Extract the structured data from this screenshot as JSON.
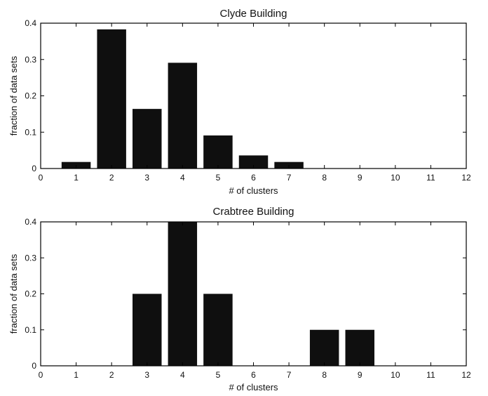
{
  "chart_data": [
    {
      "type": "bar",
      "title": "Clyde Building",
      "xlabel": "# of clusters",
      "ylabel": "fraction of data sets",
      "xlim": [
        0,
        12
      ],
      "ylim": [
        0,
        0.4
      ],
      "xticks": [
        0,
        1,
        2,
        3,
        4,
        5,
        6,
        7,
        8,
        9,
        10,
        11,
        12
      ],
      "yticks": [
        0,
        0.1,
        0.2,
        0.3,
        0.4
      ],
      "x": [
        1,
        2,
        3,
        4,
        5,
        6,
        7
      ],
      "values": [
        0.018,
        0.383,
        0.164,
        0.291,
        0.091,
        0.036,
        0.018
      ],
      "color": "#0f0f0f",
      "grid": false
    },
    {
      "type": "bar",
      "title": "Crabtree Building",
      "xlabel": "# of clusters",
      "ylabel": "fraction of data sets",
      "xlim": [
        0,
        12
      ],
      "ylim": [
        0,
        0.4
      ],
      "xticks": [
        0,
        1,
        2,
        3,
        4,
        5,
        6,
        7,
        8,
        9,
        10,
        11,
        12
      ],
      "yticks": [
        0,
        0.1,
        0.2,
        0.3,
        0.4
      ],
      "x": [
        3,
        4,
        5,
        8,
        9
      ],
      "values": [
        0.2,
        0.4,
        0.2,
        0.1,
        0.1
      ],
      "color": "#0f0f0f",
      "grid": false
    }
  ]
}
